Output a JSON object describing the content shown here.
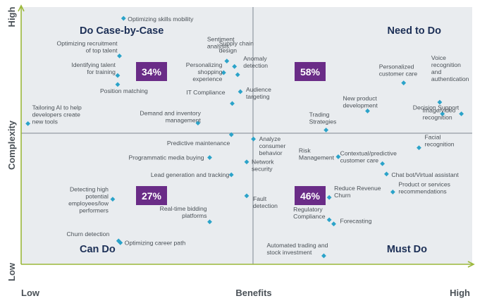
{
  "chart_data": {
    "type": "scatter",
    "title": "",
    "xlabel": "Benefits",
    "ylabel": "Complexity",
    "x_ticks": [
      "Low",
      "High"
    ],
    "y_ticks": [
      "Low",
      "High"
    ],
    "xlim": [
      0,
      100
    ],
    "ylim": [
      0,
      100
    ],
    "grid": false,
    "quadrants": [
      {
        "name": "Do Case-by-Case",
        "percent": "34%"
      },
      {
        "name": "Need to Do",
        "percent": "58%"
      },
      {
        "name": "Can Do",
        "percent": "27%"
      },
      {
        "name": "Must Do",
        "percent": "46%"
      }
    ],
    "points": [
      {
        "label": "Optimizing skills mobility",
        "x": 22.7,
        "y": 95.6
      },
      {
        "label": "Optimizing recruitment of top talent",
        "x": 21.8,
        "y": 81.0
      },
      {
        "label": "Identifying talent for training",
        "x": 21.4,
        "y": 73.4
      },
      {
        "label": "Position matching",
        "x": 21.4,
        "y": 69.9
      },
      {
        "label": "Tailoring AI to help developers create new tools",
        "x": 1.5,
        "y": 54.7
      },
      {
        "label": "Sentiment analysis",
        "x": 45.6,
        "y": 79.0
      },
      {
        "label": "Supply chain design",
        "x": 47.3,
        "y": 76.9
      },
      {
        "label": "Personalizing shopping experience",
        "x": 44.9,
        "y": 74.5
      },
      {
        "label": "Anomaly detection",
        "x": 48.0,
        "y": 73.7
      },
      {
        "label": "Audience targeting",
        "x": 48.6,
        "y": 67.1
      },
      {
        "label": "IT Compliance",
        "x": 46.8,
        "y": 62.5
      },
      {
        "label": "Demand and inventory management",
        "x": 39.2,
        "y": 54.9
      },
      {
        "label": "Predictive maintenance",
        "x": 46.6,
        "y": 50.4
      },
      {
        "label": "Programmatic media buying",
        "x": 41.8,
        "y": 41.5
      },
      {
        "label": "Lead generation and tracking",
        "x": 46.6,
        "y": 34.8
      },
      {
        "label": "Detecting high potential employees/low performers",
        "x": 20.3,
        "y": 25.3
      },
      {
        "label": "Real-time bidding platforms",
        "x": 41.8,
        "y": 16.5
      },
      {
        "label": "Churn detection",
        "x": 21.6,
        "y": 9.1
      },
      {
        "label": "Optimizing career path",
        "x": 22.0,
        "y": 8.4
      },
      {
        "label": "Personalized customer care",
        "x": 84.8,
        "y": 70.5
      },
      {
        "label": "Voice recognition and authentication",
        "x": 92.8,
        "y": 63.0
      },
      {
        "label": "Decision Support",
        "x": 93.4,
        "y": 58.5
      },
      {
        "label": "Image/video recognition",
        "x": 97.6,
        "y": 58.5
      },
      {
        "label": "New product development",
        "x": 76.8,
        "y": 59.6
      },
      {
        "label": "Trading Strategies",
        "x": 67.6,
        "y": 52.2
      },
      {
        "label": "Analyze consumer behavior",
        "x": 51.5,
        "y": 48.7
      },
      {
        "label": "Facial recognition",
        "x": 88.2,
        "y": 45.3
      },
      {
        "label": "Contextual/predictive customer care",
        "x": 80.1,
        "y": 39.1
      },
      {
        "label": "Risk Management",
        "x": 70.3,
        "y": 41.8
      },
      {
        "label": "Chat bot/Virtual assistant",
        "x": 81.0,
        "y": 35.1
      },
      {
        "label": "Network security",
        "x": 50.0,
        "y": 39.8
      },
      {
        "label": "Product or services recommendations",
        "x": 82.4,
        "y": 28.1
      },
      {
        "label": "Reduce Revenue Churn",
        "x": 68.3,
        "y": 26.0
      },
      {
        "label": "Fault detection",
        "x": 50.0,
        "y": 26.6
      },
      {
        "label": "Regulatory Compliance",
        "x": 68.3,
        "y": 17.3
      },
      {
        "label": "Forecasting",
        "x": 69.3,
        "y": 15.7
      },
      {
        "label": "Automated trading and stock investment",
        "x": 67.1,
        "y": 3.3
      }
    ]
  }
}
